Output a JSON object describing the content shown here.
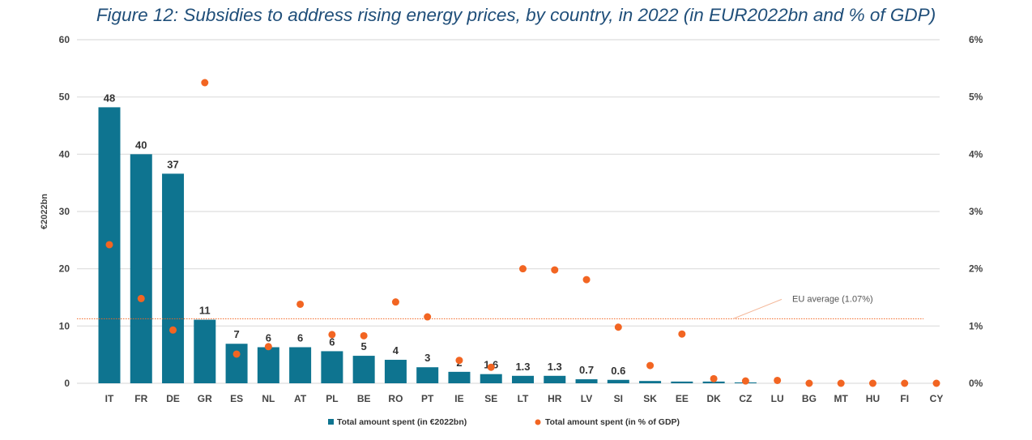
{
  "title": "Figure 12: Subsidies to address rising energy prices, by country, in 2022 (in EUR2022bn and % of GDP)",
  "colors": {
    "bar": "#0e7490",
    "dot": "#f26522",
    "avg": "#f26522",
    "grid": "#dddddd"
  },
  "chart_data": {
    "type": "bar+scatter",
    "title": "Figure 12: Subsidies to address rising energy prices, by country, in 2022 (in EUR2022bn and % of GDP)",
    "ylabel": "€2022bn",
    "ylim": [
      0,
      60
    ],
    "y_ticks": [
      "0",
      "10",
      "20",
      "30",
      "40",
      "50",
      "60"
    ],
    "y2lim": [
      0,
      6
    ],
    "y2_ticks": [
      "0%",
      "1%",
      "2%",
      "3%",
      "4%",
      "5%",
      "6%"
    ],
    "grid": true,
    "legend_position": "bottom",
    "categories": [
      "IT",
      "FR",
      "DE",
      "GR",
      "ES",
      "NL",
      "AT",
      "PL",
      "BE",
      "RO",
      "PT",
      "IE",
      "SE",
      "LT",
      "HR",
      "LV",
      "SI",
      "SK",
      "EE",
      "DK",
      "CZ",
      "LU",
      "BG",
      "MT",
      "HU",
      "FI",
      "CY"
    ],
    "series": [
      {
        "name": "Total amount spent (in €2022bn)",
        "type": "bar",
        "axis": "left",
        "values": [
          48.2,
          40,
          36.6,
          11.1,
          6.9,
          6.3,
          6.3,
          5.6,
          4.8,
          4.1,
          2.8,
          2.0,
          1.6,
          1.3,
          1.3,
          0.7,
          0.6,
          0.4,
          0.3,
          0.3,
          0.15,
          0,
          0,
          0,
          0,
          0,
          0
        ],
        "labels": [
          "48",
          "40",
          "37",
          "11",
          "7",
          "6",
          "6",
          "6",
          "5",
          "4",
          "3",
          "2",
          "1.6",
          "1.3",
          "1.3",
          "0.7",
          "0.6",
          "",
          "",
          "",
          "",
          "",
          "",
          "",
          "",
          "",
          ""
        ]
      },
      {
        "name": "Total amount spent (in % of GDP)",
        "type": "scatter",
        "axis": "right",
        "values": [
          2.42,
          1.48,
          0.93,
          5.25,
          0.51,
          0.64,
          1.38,
          0.85,
          0.83,
          1.42,
          1.16,
          0.4,
          0.28,
          2.0,
          1.98,
          1.81,
          0.98,
          0.31,
          0.86,
          0.08,
          0.04,
          0.05,
          0,
          0,
          0,
          0,
          0
        ]
      }
    ],
    "annotations": [
      {
        "text": "EU average (1.07%)",
        "value": 1.07,
        "axis": "right"
      }
    ]
  }
}
